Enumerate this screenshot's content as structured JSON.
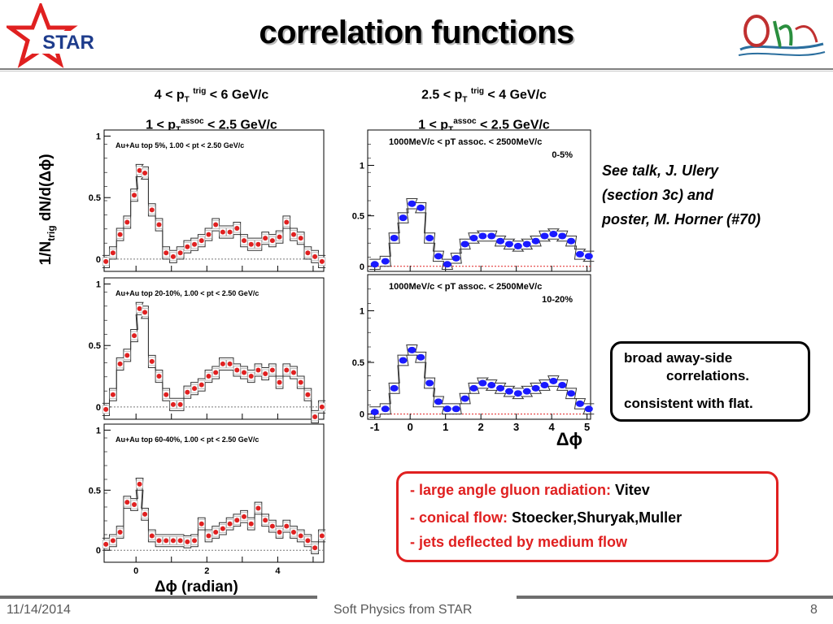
{
  "slide": {
    "title": "correlation functions",
    "star_logo_text": "STAR",
    "ylabel_prefix": "1/N",
    "ylabel_sub": "trig",
    "ylabel_suffix": " dN/d(Δϕ)",
    "left_xlabel": "Δϕ (radian)",
    "right_xlabel": "Δϕ",
    "caption_left": {
      "l1a": "4 < p",
      "l1sub": "T",
      "l1sup": "trig",
      "l1b": " < 6 GeV/c",
      "l2a": "1 < p",
      "l2sub": "T",
      "l2sup": "assoc",
      "l2b": " < 2.5 GeV/c"
    },
    "caption_right": {
      "l1a": "2.5 < p",
      "l1sub": "T",
      "l1sup": "trig",
      "l1b": " < 4 GeV/c",
      "l2a": "1 < p",
      "l2sub": "T",
      "l2sup": "assoc",
      "l2b": " < 2.5 GeV/c"
    },
    "note": [
      "See talk, J. Ulery",
      "(section 3c) and",
      "poster, M. Horner (#70)"
    ],
    "box1": [
      "broad away-side",
      "correlations.",
      "consistent with flat."
    ],
    "box2": {
      "line1_red": "- large angle gluon radiation: ",
      "line1_black": "Vitev",
      "line2_red": "- conical flow: ",
      "line2_black": "Stoecker,Shuryak,Muller",
      "line3_red": "- jets deflected by medium flow"
    },
    "footer": {
      "date": "11/14/2014",
      "center": "Soft Physics from STAR",
      "page": "8"
    },
    "colors": {
      "red": "#e02020",
      "blue": "#1a1aff",
      "title_shadow": "#b9b9b9"
    }
  },
  "chart_data": [
    {
      "type": "scatter",
      "panel": "left-1",
      "label": "Au+Au top 5%, 1.00 < pt < 2.50 GeV/c",
      "xlim": [
        -0.9,
        5.3
      ],
      "ylim": [
        -0.1,
        1.05
      ],
      "yticks": [
        "0",
        "0.5",
        "1"
      ],
      "x": [
        -0.85,
        -0.65,
        -0.45,
        -0.25,
        -0.05,
        0.1,
        0.25,
        0.45,
        0.65,
        0.85,
        1.05,
        1.25,
        1.45,
        1.65,
        1.85,
        2.05,
        2.25,
        2.45,
        2.65,
        2.85,
        3.05,
        3.25,
        3.45,
        3.65,
        3.85,
        4.05,
        4.25,
        4.45,
        4.65,
        4.85,
        5.05,
        5.25
      ],
      "y": [
        -0.02,
        0.05,
        0.2,
        0.3,
        0.52,
        0.72,
        0.7,
        0.4,
        0.28,
        0.05,
        0.02,
        0.05,
        0.1,
        0.12,
        0.15,
        0.2,
        0.28,
        0.22,
        0.22,
        0.25,
        0.15,
        0.12,
        0.12,
        0.17,
        0.15,
        0.18,
        0.3,
        0.2,
        0.17,
        0.05,
        0.02,
        -0.02
      ]
    },
    {
      "type": "scatter",
      "panel": "left-2",
      "label": "Au+Au top 20-10%, 1.00 < pt < 2.50 GeV/c",
      "xlim": [
        -0.9,
        5.3
      ],
      "ylim": [
        -0.1,
        1.05
      ],
      "yticks": [
        "0",
        "0.5",
        "1"
      ],
      "x": [
        -0.85,
        -0.65,
        -0.45,
        -0.25,
        -0.05,
        0.1,
        0.25,
        0.45,
        0.65,
        0.85,
        1.05,
        1.25,
        1.45,
        1.65,
        1.85,
        2.05,
        2.25,
        2.45,
        2.65,
        2.85,
        3.05,
        3.25,
        3.45,
        3.65,
        3.85,
        4.05,
        4.25,
        4.45,
        4.65,
        4.85,
        5.05,
        5.25
      ],
      "y": [
        -0.02,
        0.1,
        0.35,
        0.42,
        0.58,
        0.8,
        0.77,
        0.37,
        0.25,
        0.1,
        0.02,
        0.02,
        0.12,
        0.15,
        0.18,
        0.25,
        0.28,
        0.35,
        0.35,
        0.3,
        0.28,
        0.25,
        0.3,
        0.27,
        0.3,
        0.2,
        0.3,
        0.28,
        0.2,
        0.1,
        -0.08,
        0.0
      ]
    },
    {
      "type": "scatter",
      "panel": "left-3",
      "label": "Au+Au top 60-40%, 1.00 < pt < 2.50 GeV/c",
      "xlim": [
        -0.9,
        5.3
      ],
      "ylim": [
        -0.1,
        1.05
      ],
      "yticks": [
        "0",
        "0.5",
        "1"
      ],
      "x": [
        -0.85,
        -0.65,
        -0.45,
        -0.25,
        -0.05,
        0.1,
        0.25,
        0.45,
        0.65,
        0.85,
        1.05,
        1.25,
        1.45,
        1.65,
        1.85,
        2.05,
        2.25,
        2.45,
        2.65,
        2.85,
        3.05,
        3.25,
        3.45,
        3.65,
        3.85,
        4.05,
        4.25,
        4.45,
        4.65,
        4.85,
        5.05,
        5.25
      ],
      "y": [
        0.05,
        0.08,
        0.15,
        0.4,
        0.38,
        0.55,
        0.3,
        0.12,
        0.08,
        0.08,
        0.08,
        0.08,
        0.07,
        0.08,
        0.22,
        0.12,
        0.15,
        0.18,
        0.22,
        0.25,
        0.28,
        0.22,
        0.35,
        0.25,
        0.2,
        0.15,
        0.2,
        0.15,
        0.12,
        0.08,
        0.02,
        0.12
      ]
    },
    {
      "type": "scatter",
      "panel": "right-1",
      "label": "1000MeV/c < pT assoc. < 2500MeV/c",
      "sublabel": "0-5%",
      "xlim": [
        -1.2,
        5.1
      ],
      "ylim": [
        -0.05,
        1.35
      ],
      "yticks": [
        "0",
        "0.5",
        "1"
      ],
      "x": [
        -1.0,
        -0.7,
        -0.45,
        -0.2,
        0.05,
        0.3,
        0.55,
        0.8,
        1.05,
        1.3,
        1.55,
        1.8,
        2.05,
        2.3,
        2.55,
        2.8,
        3.05,
        3.3,
        3.55,
        3.8,
        4.05,
        4.3,
        4.55,
        4.8,
        5.05
      ],
      "y": [
        0.02,
        0.05,
        0.28,
        0.48,
        0.62,
        0.58,
        0.28,
        0.1,
        0.02,
        0.08,
        0.22,
        0.28,
        0.3,
        0.3,
        0.25,
        0.22,
        0.2,
        0.22,
        0.25,
        0.3,
        0.32,
        0.3,
        0.25,
        0.12,
        0.1
      ]
    },
    {
      "type": "scatter",
      "panel": "right-2",
      "label": "1000MeV/c < pT assoc. < 2500MeV/c",
      "sublabel": "10-20%",
      "xlim": [
        -1.2,
        5.1
      ],
      "ylim": [
        -0.05,
        1.35
      ],
      "yticks": [
        "0",
        "0.5",
        "1"
      ],
      "x": [
        -1.0,
        -0.7,
        -0.45,
        -0.2,
        0.05,
        0.3,
        0.55,
        0.8,
        1.05,
        1.3,
        1.55,
        1.8,
        2.05,
        2.3,
        2.55,
        2.8,
        3.05,
        3.3,
        3.55,
        3.8,
        4.05,
        4.3,
        4.55,
        4.8,
        5.05
      ],
      "y": [
        0.02,
        0.05,
        0.25,
        0.52,
        0.62,
        0.55,
        0.3,
        0.12,
        0.05,
        0.05,
        0.15,
        0.25,
        0.3,
        0.28,
        0.25,
        0.22,
        0.2,
        0.22,
        0.25,
        0.28,
        0.32,
        0.28,
        0.2,
        0.1,
        0.05
      ],
      "xticks": [
        "-1",
        "0",
        "1",
        "2",
        "3",
        "4",
        "5"
      ]
    }
  ]
}
